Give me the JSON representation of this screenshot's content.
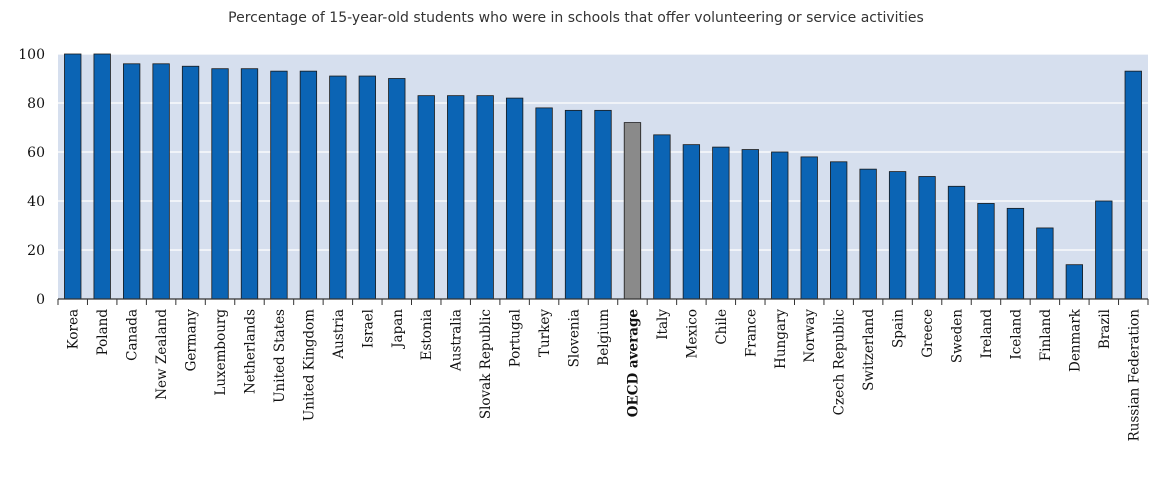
{
  "chart_data": {
    "type": "bar",
    "title": "Percentage of 15-year-old students who were in schools that offer volunteering or service activities",
    "xlabel": "",
    "ylabel": "",
    "ylim": [
      0,
      100
    ],
    "yticks": [
      0,
      20,
      40,
      60,
      80,
      100
    ],
    "grid": true,
    "highlight_category": "OECD average",
    "colors": {
      "bar": "#0b64b4",
      "highlight": "#8a8a8a",
      "plot_background": "#d6dfee",
      "gridline": "#ffffff",
      "bar_outline": "#1a1a1a"
    },
    "categories": [
      "Korea",
      "Poland",
      "Canada",
      "New Zealand",
      "Germany",
      "Luxembourg",
      "Netherlands",
      "United States",
      "United Kingdom",
      "Austria",
      "Israel",
      "Japan",
      "Estonia",
      "Australia",
      "Slovak Republic",
      "Portugal",
      "Turkey",
      "Slovenia",
      "Belgium",
      "OECD average",
      "Italy",
      "Mexico",
      "Chile",
      "France",
      "Hungary",
      "Norway",
      "Czech Republic",
      "Switzerland",
      "Spain",
      "Greece",
      "Sweden",
      "Ireland",
      "Iceland",
      "Finland",
      "Denmark",
      "Brazil",
      "Russian Federation"
    ],
    "values": [
      100,
      100,
      96,
      96,
      95,
      94,
      94,
      93,
      93,
      91,
      91,
      90,
      83,
      83,
      83,
      82,
      78,
      77,
      77,
      72,
      67,
      63,
      62,
      61,
      60,
      58,
      56,
      53,
      52,
      50,
      46,
      39,
      37,
      29,
      14,
      40,
      93
    ]
  }
}
